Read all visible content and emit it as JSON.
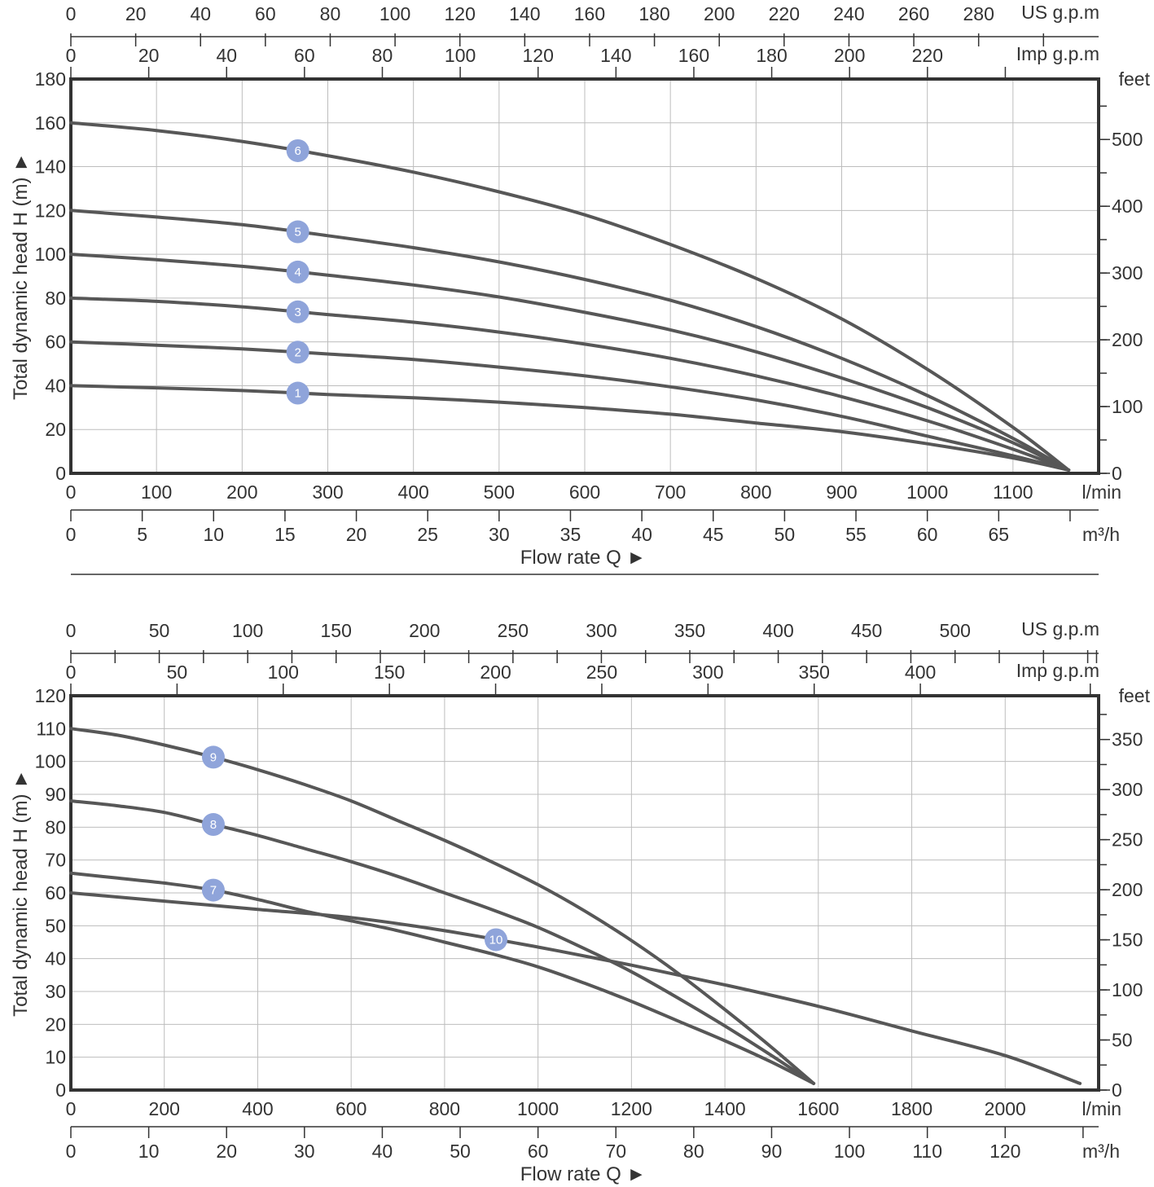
{
  "colors": {
    "curve": "#575757",
    "badge": "#8fa4da",
    "grid": "#bdbdbd",
    "frame": "#333333",
    "text": "#333333"
  },
  "chart_data": [
    {
      "type": "line",
      "xlabel": "Flow rate Q ►",
      "ylabel": "Total dynamic head H (m) ►",
      "x_unit": "l/min",
      "xlim": [
        0,
        1200
      ],
      "ylim": [
        0,
        180
      ],
      "x_ticks": [
        0,
        100,
        200,
        300,
        400,
        500,
        600,
        700,
        800,
        900,
        1000,
        1100
      ],
      "y_ticks": [
        0,
        20,
        40,
        60,
        80,
        100,
        120,
        140,
        160,
        180
      ],
      "secondary_axes": {
        "feet": {
          "label": "feet",
          "ticks": [
            0,
            100,
            200,
            300,
            400,
            500
          ],
          "minor_step": 50,
          "factor": 3.2808
        },
        "m3h": {
          "label": "m³/h",
          "ticks": [
            0,
            5,
            10,
            15,
            20,
            25,
            30,
            35,
            40,
            45,
            50,
            55,
            60,
            65
          ],
          "factor": 16.6667,
          "unit_at": 70
        },
        "imp_gpm": {
          "label": "Imp g.p.m",
          "ticks": [
            0,
            20,
            40,
            60,
            80,
            100,
            120,
            140,
            160,
            180,
            200,
            220
          ],
          "factor": 4.5461,
          "unit_at": 240
        },
        "us_gpm": {
          "label": "US g.p.m",
          "ticks": [
            0,
            20,
            40,
            60,
            80,
            100,
            120,
            140,
            160,
            180,
            200,
            220,
            240,
            260,
            280
          ],
          "factor": 3.7854,
          "unit_at": 300
        }
      },
      "series": [
        {
          "name": "1",
          "badge_x": 265,
          "points": [
            [
              0,
              40
            ],
            [
              100,
              39
            ],
            [
              200,
              37.8
            ],
            [
              300,
              36
            ],
            [
              400,
              34.5
            ],
            [
              500,
              32.5
            ],
            [
              600,
              30
            ],
            [
              700,
              27
            ],
            [
              800,
              23
            ],
            [
              900,
              19
            ],
            [
              1000,
              13.5
            ],
            [
              1100,
              7
            ],
            [
              1165,
              1.5
            ]
          ]
        },
        {
          "name": "2",
          "badge_x": 265,
          "points": [
            [
              0,
              60
            ],
            [
              100,
              58.5
            ],
            [
              200,
              56.8
            ],
            [
              300,
              54.5
            ],
            [
              400,
              52
            ],
            [
              500,
              48.5
            ],
            [
              600,
              44.5
            ],
            [
              700,
              39.5
            ],
            [
              800,
              33.5
            ],
            [
              900,
              26
            ],
            [
              1000,
              17
            ],
            [
              1100,
              8
            ],
            [
              1165,
              1.5
            ]
          ]
        },
        {
          "name": "3",
          "badge_x": 265,
          "points": [
            [
              0,
              80
            ],
            [
              100,
              78.5
            ],
            [
              200,
              76
            ],
            [
              300,
              72.5
            ],
            [
              400,
              69
            ],
            [
              500,
              64.5
            ],
            [
              600,
              59
            ],
            [
              700,
              52.5
            ],
            [
              800,
              44.5
            ],
            [
              900,
              35
            ],
            [
              1000,
              24
            ],
            [
              1100,
              11
            ],
            [
              1165,
              1.5
            ]
          ]
        },
        {
          "name": "4",
          "badge_x": 265,
          "points": [
            [
              0,
              100
            ],
            [
              100,
              97.5
            ],
            [
              200,
              94.5
            ],
            [
              300,
              90.5
            ],
            [
              400,
              86
            ],
            [
              500,
              80.5
            ],
            [
              600,
              73.5
            ],
            [
              700,
              65.5
            ],
            [
              800,
              55.5
            ],
            [
              900,
              43.5
            ],
            [
              1000,
              30
            ],
            [
              1100,
              14
            ],
            [
              1165,
              1.5
            ]
          ]
        },
        {
          "name": "5",
          "badge_x": 265,
          "points": [
            [
              0,
              120
            ],
            [
              100,
              117
            ],
            [
              200,
              113.5
            ],
            [
              300,
              108.5
            ],
            [
              400,
              103
            ],
            [
              500,
              96.5
            ],
            [
              600,
              88.5
            ],
            [
              700,
              79
            ],
            [
              800,
              67
            ],
            [
              900,
              52.5
            ],
            [
              1000,
              35.5
            ],
            [
              1100,
              16
            ],
            [
              1165,
              1.5
            ]
          ]
        },
        {
          "name": "6",
          "badge_x": 265,
          "points": [
            [
              0,
              160
            ],
            [
              100,
              156.5
            ],
            [
              200,
              151.5
            ],
            [
              300,
              145
            ],
            [
              400,
              137.5
            ],
            [
              500,
              128.5
            ],
            [
              600,
              118
            ],
            [
              700,
              104.5
            ],
            [
              800,
              89
            ],
            [
              900,
              70.5
            ],
            [
              1000,
              47.5
            ],
            [
              1100,
              21
            ],
            [
              1165,
              1.5
            ]
          ]
        }
      ]
    },
    {
      "type": "line",
      "xlabel": "Flow rate Q ►",
      "ylabel": "Total dynamic head H (m) ►",
      "x_unit": "l/min",
      "xlim": [
        0,
        2200
      ],
      "ylim": [
        0,
        120
      ],
      "x_ticks": [
        0,
        200,
        400,
        600,
        800,
        1000,
        1200,
        1400,
        1600,
        1800,
        2000
      ],
      "y_ticks": [
        0,
        10,
        20,
        30,
        40,
        50,
        60,
        70,
        80,
        90,
        100,
        110,
        120
      ],
      "secondary_axes": {
        "feet": {
          "label": "feet",
          "ticks": [
            0,
            50,
            100,
            150,
            200,
            250,
            300,
            350
          ],
          "minor_step": 25,
          "factor": 3.2808
        },
        "m3h": {
          "label": "m³/h",
          "ticks": [
            0,
            10,
            20,
            30,
            40,
            50,
            60,
            70,
            80,
            90,
            100,
            110,
            120
          ],
          "factor": 16.6667,
          "unit_at": 130
        },
        "imp_gpm": {
          "label": "Imp g.p.m",
          "ticks": [
            0,
            50,
            100,
            150,
            200,
            250,
            300,
            350,
            400
          ],
          "factor": 4.5461,
          "unit_at": 480
        },
        "us_gpm": {
          "label": "US g.p.m",
          "ticks": [
            0,
            50,
            100,
            150,
            200,
            250,
            300,
            350,
            400,
            450,
            500
          ],
          "minor_step": 25,
          "factor": 3.7854,
          "unit_at": 580
        }
      },
      "series": [
        {
          "name": "7",
          "badge_x": 305,
          "points": [
            [
              0,
              66
            ],
            [
              100,
              64.5
            ],
            [
              200,
              63
            ],
            [
              300,
              61
            ],
            [
              400,
              58
            ],
            [
              500,
              54.5
            ],
            [
              600,
              51.5
            ],
            [
              700,
              48.5
            ],
            [
              800,
              45
            ],
            [
              900,
              41.5
            ],
            [
              1000,
              37.5
            ],
            [
              1100,
              32.5
            ],
            [
              1200,
              27
            ],
            [
              1300,
              21
            ],
            [
              1400,
              15
            ],
            [
              1500,
              8.5
            ],
            [
              1590,
              2
            ]
          ]
        },
        {
          "name": "8",
          "badge_x": 305,
          "points": [
            [
              0,
              88
            ],
            [
              100,
              86.5
            ],
            [
              200,
              84.5
            ],
            [
              300,
              81
            ],
            [
              400,
              77.5
            ],
            [
              500,
              73.5
            ],
            [
              600,
              69.5
            ],
            [
              700,
              65
            ],
            [
              800,
              60
            ],
            [
              900,
              55
            ],
            [
              1000,
              49.5
            ],
            [
              1100,
              43
            ],
            [
              1200,
              36
            ],
            [
              1300,
              28
            ],
            [
              1400,
              19.5
            ],
            [
              1500,
              10.5
            ],
            [
              1590,
              2
            ]
          ]
        },
        {
          "name": "9",
          "badge_x": 305,
          "points": [
            [
              0,
              110
            ],
            [
              100,
              108
            ],
            [
              200,
              105
            ],
            [
              300,
              101.5
            ],
            [
              400,
              97.5
            ],
            [
              500,
              93
            ],
            [
              600,
              88
            ],
            [
              700,
              82
            ],
            [
              800,
              76
            ],
            [
              900,
              69.5
            ],
            [
              1000,
              62.5
            ],
            [
              1100,
              54.5
            ],
            [
              1200,
              45.5
            ],
            [
              1300,
              35.5
            ],
            [
              1400,
              24.5
            ],
            [
              1500,
              13
            ],
            [
              1590,
              2
            ]
          ]
        },
        {
          "name": "10",
          "badge_x": 910,
          "points": [
            [
              0,
              60
            ],
            [
              200,
              57.5
            ],
            [
              400,
              55
            ],
            [
              600,
              52.5
            ],
            [
              800,
              48.5
            ],
            [
              1000,
              43.5
            ],
            [
              1200,
              38
            ],
            [
              1400,
              32
            ],
            [
              1600,
              25.5
            ],
            [
              1800,
              18
            ],
            [
              2000,
              10.5
            ],
            [
              2160,
              2
            ]
          ]
        }
      ]
    }
  ]
}
